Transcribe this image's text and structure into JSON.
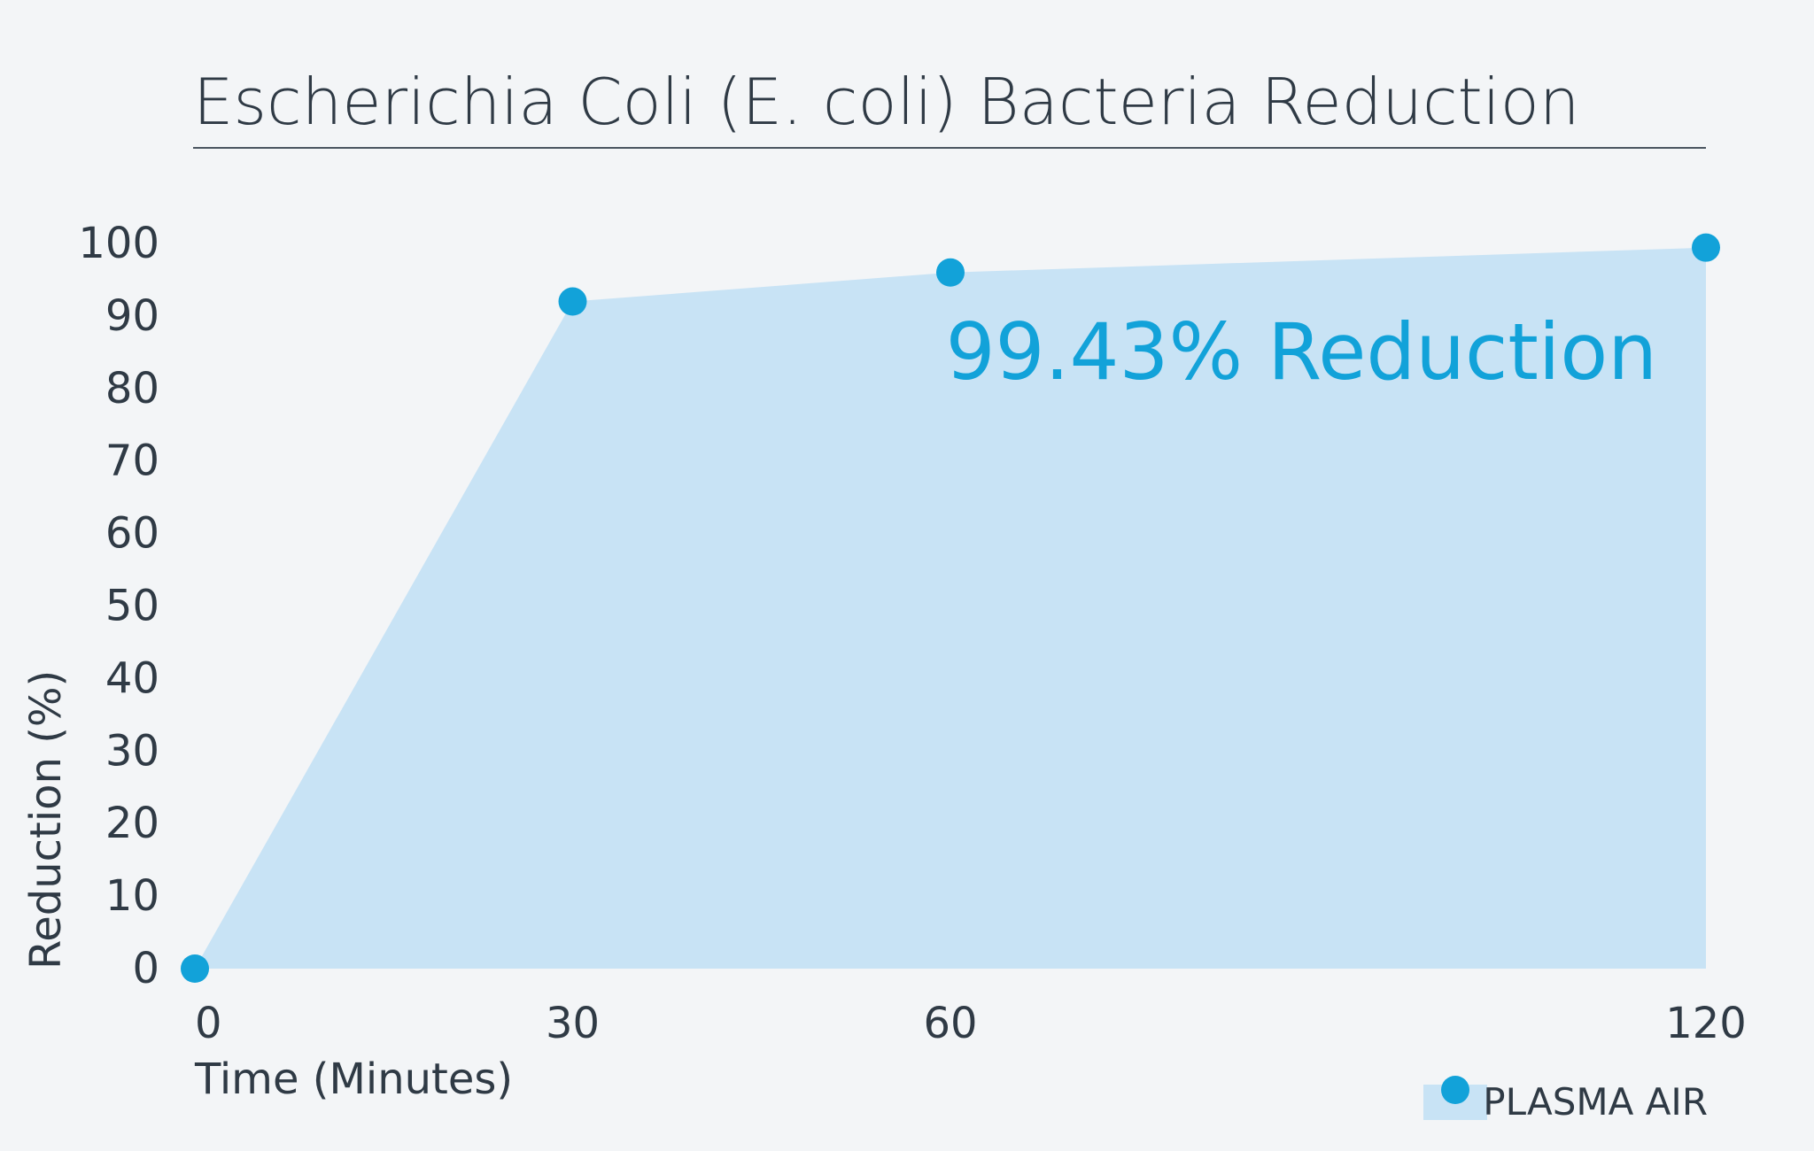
{
  "chart_data": {
    "type": "area",
    "title": "Escherichia Coli (E. coli) Bacteria Reduction",
    "xlabel": "Time (Minutes)",
    "ylabel": "Reduction (%)",
    "x_categories": [
      "0",
      "30",
      "60",
      "120"
    ],
    "x_ticks": [
      0,
      30,
      60,
      120
    ],
    "y_ticks": [
      0,
      10,
      20,
      30,
      40,
      50,
      60,
      70,
      80,
      90,
      100
    ],
    "ylim": [
      0,
      100
    ],
    "series": [
      {
        "name": "PLASMA AIR",
        "x": [
          0,
          30,
          60,
          120
        ],
        "values": [
          0,
          92,
          96,
          99.43
        ]
      }
    ],
    "annotation": "99.43% Reduction",
    "legend": {
      "label": "PLASMA AIR",
      "position": "bottom-right"
    },
    "grid": false,
    "colors": {
      "fill": "#c8e3f5",
      "marker": "#12a2d9",
      "text": "#2f3a45",
      "background": "#f3f5f7"
    }
  }
}
